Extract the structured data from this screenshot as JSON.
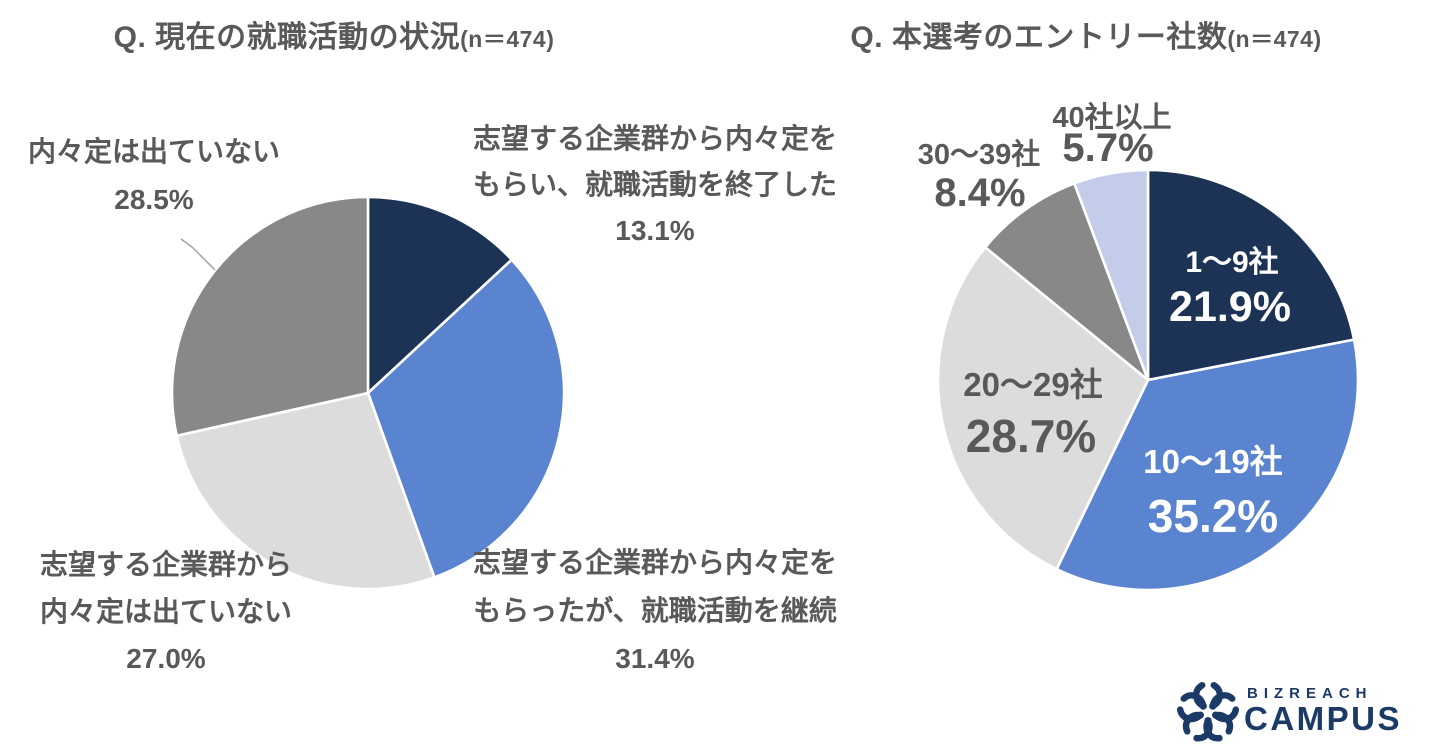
{
  "titles": {
    "left": {
      "main": "Q. 現在の就職活動の状況",
      "n": "(n＝474)"
    },
    "right": {
      "main": "Q. 本選考のエントリー社数",
      "n": "(n＝474)"
    }
  },
  "chart_data": [
    {
      "type": "pie",
      "title": "Q. 現在の就職活動の状況(n＝474)",
      "n": 474,
      "start_angle_deg": 0,
      "direction": "clockwise",
      "slices": [
        {
          "label": "志望する企業群から内々定をもらい、就職活動を終了した",
          "value": 13.1,
          "pct_label": "13.1%",
          "color": "#1C3355"
        },
        {
          "label": "志望する企業群から内々定をもらったが、就職活動を継続",
          "value": 31.4,
          "pct_label": "31.4%",
          "color": "#5B84D0"
        },
        {
          "label": "志望する企業群から内々定は出ていない",
          "value": 27.0,
          "pct_label": "27.0%",
          "color": "#DCDCDD"
        },
        {
          "label": "内々定は出ていない",
          "value": 28.5,
          "pct_label": "28.5%",
          "color": "#888888"
        }
      ]
    },
    {
      "type": "pie",
      "title": "Q. 本選考のエントリー社数(n＝474)",
      "n": 474,
      "start_angle_deg": 0,
      "direction": "clockwise",
      "slices": [
        {
          "label": "1〜9社",
          "value": 21.9,
          "pct_label": "21.9%",
          "color": "#1C3355"
        },
        {
          "label": "10〜19社",
          "value": 35.2,
          "pct_label": "35.2%",
          "color": "#5B84D0"
        },
        {
          "label": "20〜29社",
          "value": 28.7,
          "pct_label": "28.7%",
          "color": "#DCDCDD"
        },
        {
          "label": "30〜39社",
          "value": 8.4,
          "pct_label": "8.4%",
          "color": "#888888"
        },
        {
          "label": "40社以上",
          "value": 5.7,
          "pct_label": "5.7%",
          "color": "#C3CCE8"
        }
      ]
    }
  ],
  "labels": {
    "left": [
      {
        "lines": [
          "内々定は出ていない",
          "28.5%"
        ]
      },
      {
        "lines": [
          "志望する企業群から内々定を",
          "もらい、就職活動を終了した",
          "13.1%"
        ]
      },
      {
        "lines": [
          "志望する企業群から",
          "内々定は出ていない",
          "27.0%"
        ]
      },
      {
        "lines": [
          "志望する企業群から内々定を",
          "もらったが、就職活動を継続",
          "31.4%"
        ]
      }
    ],
    "right": {
      "r40": {
        "name": "40社以上",
        "pct": "5.7%"
      },
      "r30": {
        "name": "30〜39社",
        "pct": "8.4%"
      },
      "r1": {
        "name": "1〜9社",
        "pct": "21.9%"
      },
      "r10": {
        "name": "10〜19社",
        "pct": "35.2%"
      },
      "r20": {
        "name": "20〜29社",
        "pct": "28.7%"
      }
    }
  },
  "logo": {
    "top": "BIZREACH",
    "bottom": "CAMPUS",
    "color": "#1B3A66"
  },
  "colors": {
    "text": "#595959",
    "label_on_dark": "#FFFFFF",
    "leader_line": "#9E9E9E",
    "slice_border": "#FFFFFF"
  }
}
